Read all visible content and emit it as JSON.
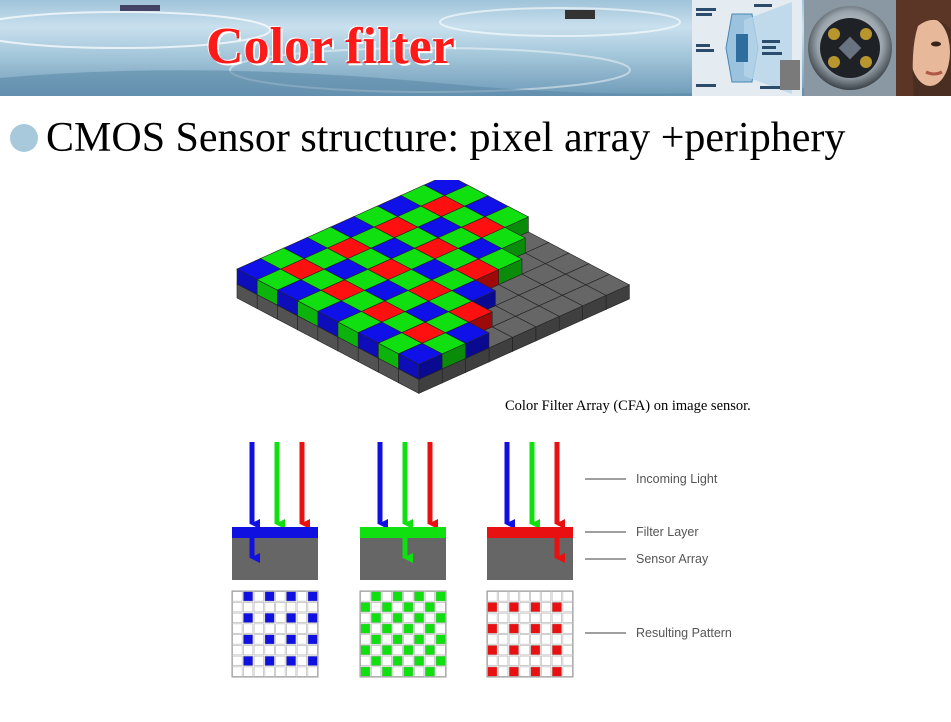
{
  "slide": {
    "title": "Color filter",
    "bullet": "CMOS Sensor structure: pixel array +periphery"
  },
  "figure": {
    "caption": "Color Filter Array (CFA) on image sensor.",
    "callouts": {
      "incoming_light": "Incoming Light",
      "filter_layer": "Filter Layer",
      "sensor_array": "Sensor Array",
      "resulting_pattern": "Resulting Pattern"
    },
    "channels": [
      {
        "name": "blue",
        "color": "#1010e0"
      },
      {
        "name": "green",
        "color": "#10e010"
      },
      {
        "name": "red",
        "color": "#e81010"
      }
    ]
  },
  "colors": {
    "title": "#ff1a1a",
    "bullet": "#a8c8dc",
    "sensor_gray": "#666666",
    "cfa_red": "#ff1010",
    "cfa_green": "#10e010",
    "cfa_blue": "#1010e8"
  },
  "icons": [
    "bullet-dot-icon",
    "incoming-light-arrow-icon"
  ]
}
